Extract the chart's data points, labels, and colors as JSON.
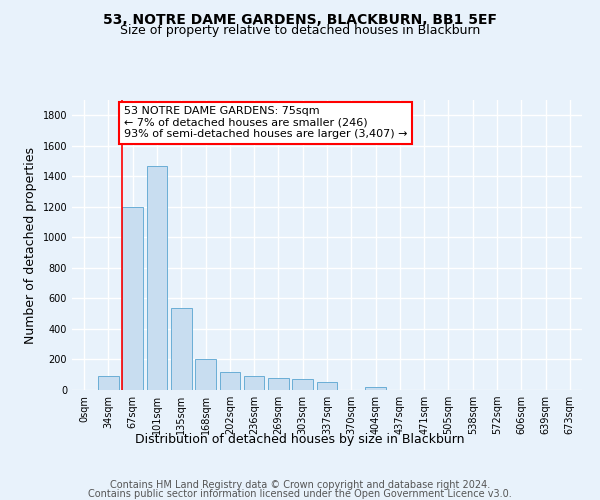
{
  "title": "53, NOTRE DAME GARDENS, BLACKBURN, BB1 5EF",
  "subtitle": "Size of property relative to detached houses in Blackburn",
  "xlabel": "Distribution of detached houses by size in Blackburn",
  "ylabel": "Number of detached properties",
  "categories": [
    "0sqm",
    "34sqm",
    "67sqm",
    "101sqm",
    "135sqm",
    "168sqm",
    "202sqm",
    "236sqm",
    "269sqm",
    "303sqm",
    "337sqm",
    "370sqm",
    "404sqm",
    "437sqm",
    "471sqm",
    "505sqm",
    "538sqm",
    "572sqm",
    "606sqm",
    "639sqm",
    "673sqm"
  ],
  "values": [
    0,
    90,
    1200,
    1470,
    540,
    200,
    120,
    90,
    80,
    70,
    50,
    0,
    20,
    0,
    0,
    0,
    0,
    0,
    0,
    0,
    0
  ],
  "bar_color": "#c8ddf0",
  "bar_edge_color": "#6aaed6",
  "red_line_index": 2,
  "annotation_line1": "53 NOTRE DAME GARDENS: 75sqm",
  "annotation_line2": "← 7% of detached houses are smaller (246)",
  "annotation_line3": "93% of semi-detached houses are larger (3,407) →",
  "ylim": [
    0,
    1900
  ],
  "yticks": [
    0,
    200,
    400,
    600,
    800,
    1000,
    1200,
    1400,
    1600,
    1800
  ],
  "footer_line1": "Contains HM Land Registry data © Crown copyright and database right 2024.",
  "footer_line2": "Contains public sector information licensed under the Open Government Licence v3.0.",
  "background_color": "#e8f2fb",
  "grid_color": "#ffffff",
  "title_fontsize": 10,
  "subtitle_fontsize": 9,
  "axis_label_fontsize": 9,
  "tick_fontsize": 7,
  "footer_fontsize": 7,
  "annot_fontsize": 8
}
